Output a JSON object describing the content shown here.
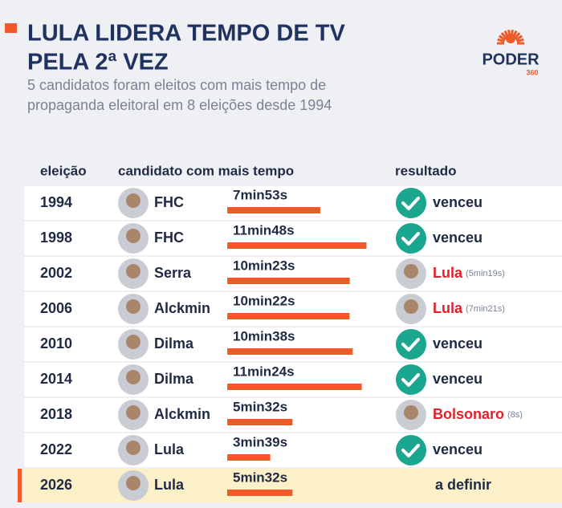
{
  "header": {
    "title": [
      "LULA LIDERA TEMPO DE TV",
      "PELA 2ª VEZ"
    ],
    "subtitle": [
      "5 candidatos foram eleitos com mais tempo de",
      "propaganda eleitoral em 8 eleições desde 1994"
    ],
    "logo": {
      "name": "PODER",
      "number": "360"
    }
  },
  "table": {
    "columns": [
      "eleição",
      "candidato com mais tempo",
      "resultado"
    ],
    "rows": [
      {
        "year": "1994",
        "candidate": "FHC",
        "time": {
          "value": 473,
          "label": "7min53s"
        },
        "result": "venceu"
      },
      {
        "year": "1998",
        "candidate": "FHC",
        "time": {
          "value": 708,
          "label": "11min48s"
        },
        "result": "venceu"
      },
      {
        "year": "2002",
        "candidate": "Serra",
        "time": {
          "value": 623,
          "label": "10min23s"
        },
        "winner": "Lula",
        "winner_time": "(5min19s)"
      },
      {
        "year": "2006",
        "candidate": "Alckmin",
        "time": {
          "value": 622,
          "label": "10min22s"
        },
        "winner": "Lula",
        "winner_time": "(7min21s)"
      },
      {
        "year": "2010",
        "candidate": "Dilma",
        "time": {
          "value": 638,
          "label": "10min38s"
        },
        "result": "venceu"
      },
      {
        "year": "2014",
        "candidate": "Dilma",
        "time": {
          "value": 684,
          "label": "11min24s"
        },
        "result": "venceu"
      },
      {
        "year": "2018",
        "candidate": "Alckmin",
        "time": {
          "value": 332,
          "label": "5min32s"
        },
        "winner": "Bolsonaro",
        "winner_time": "(8s)"
      },
      {
        "year": "2022",
        "candidate": "Lula",
        "time": {
          "value": 219,
          "label": "3min39s"
        },
        "result": "venceu"
      },
      {
        "year": "2026",
        "candidate": "Lula",
        "time": {
          "value": 332,
          "label": "5min32s"
        },
        "result": "a definir"
      }
    ]
  }
}
